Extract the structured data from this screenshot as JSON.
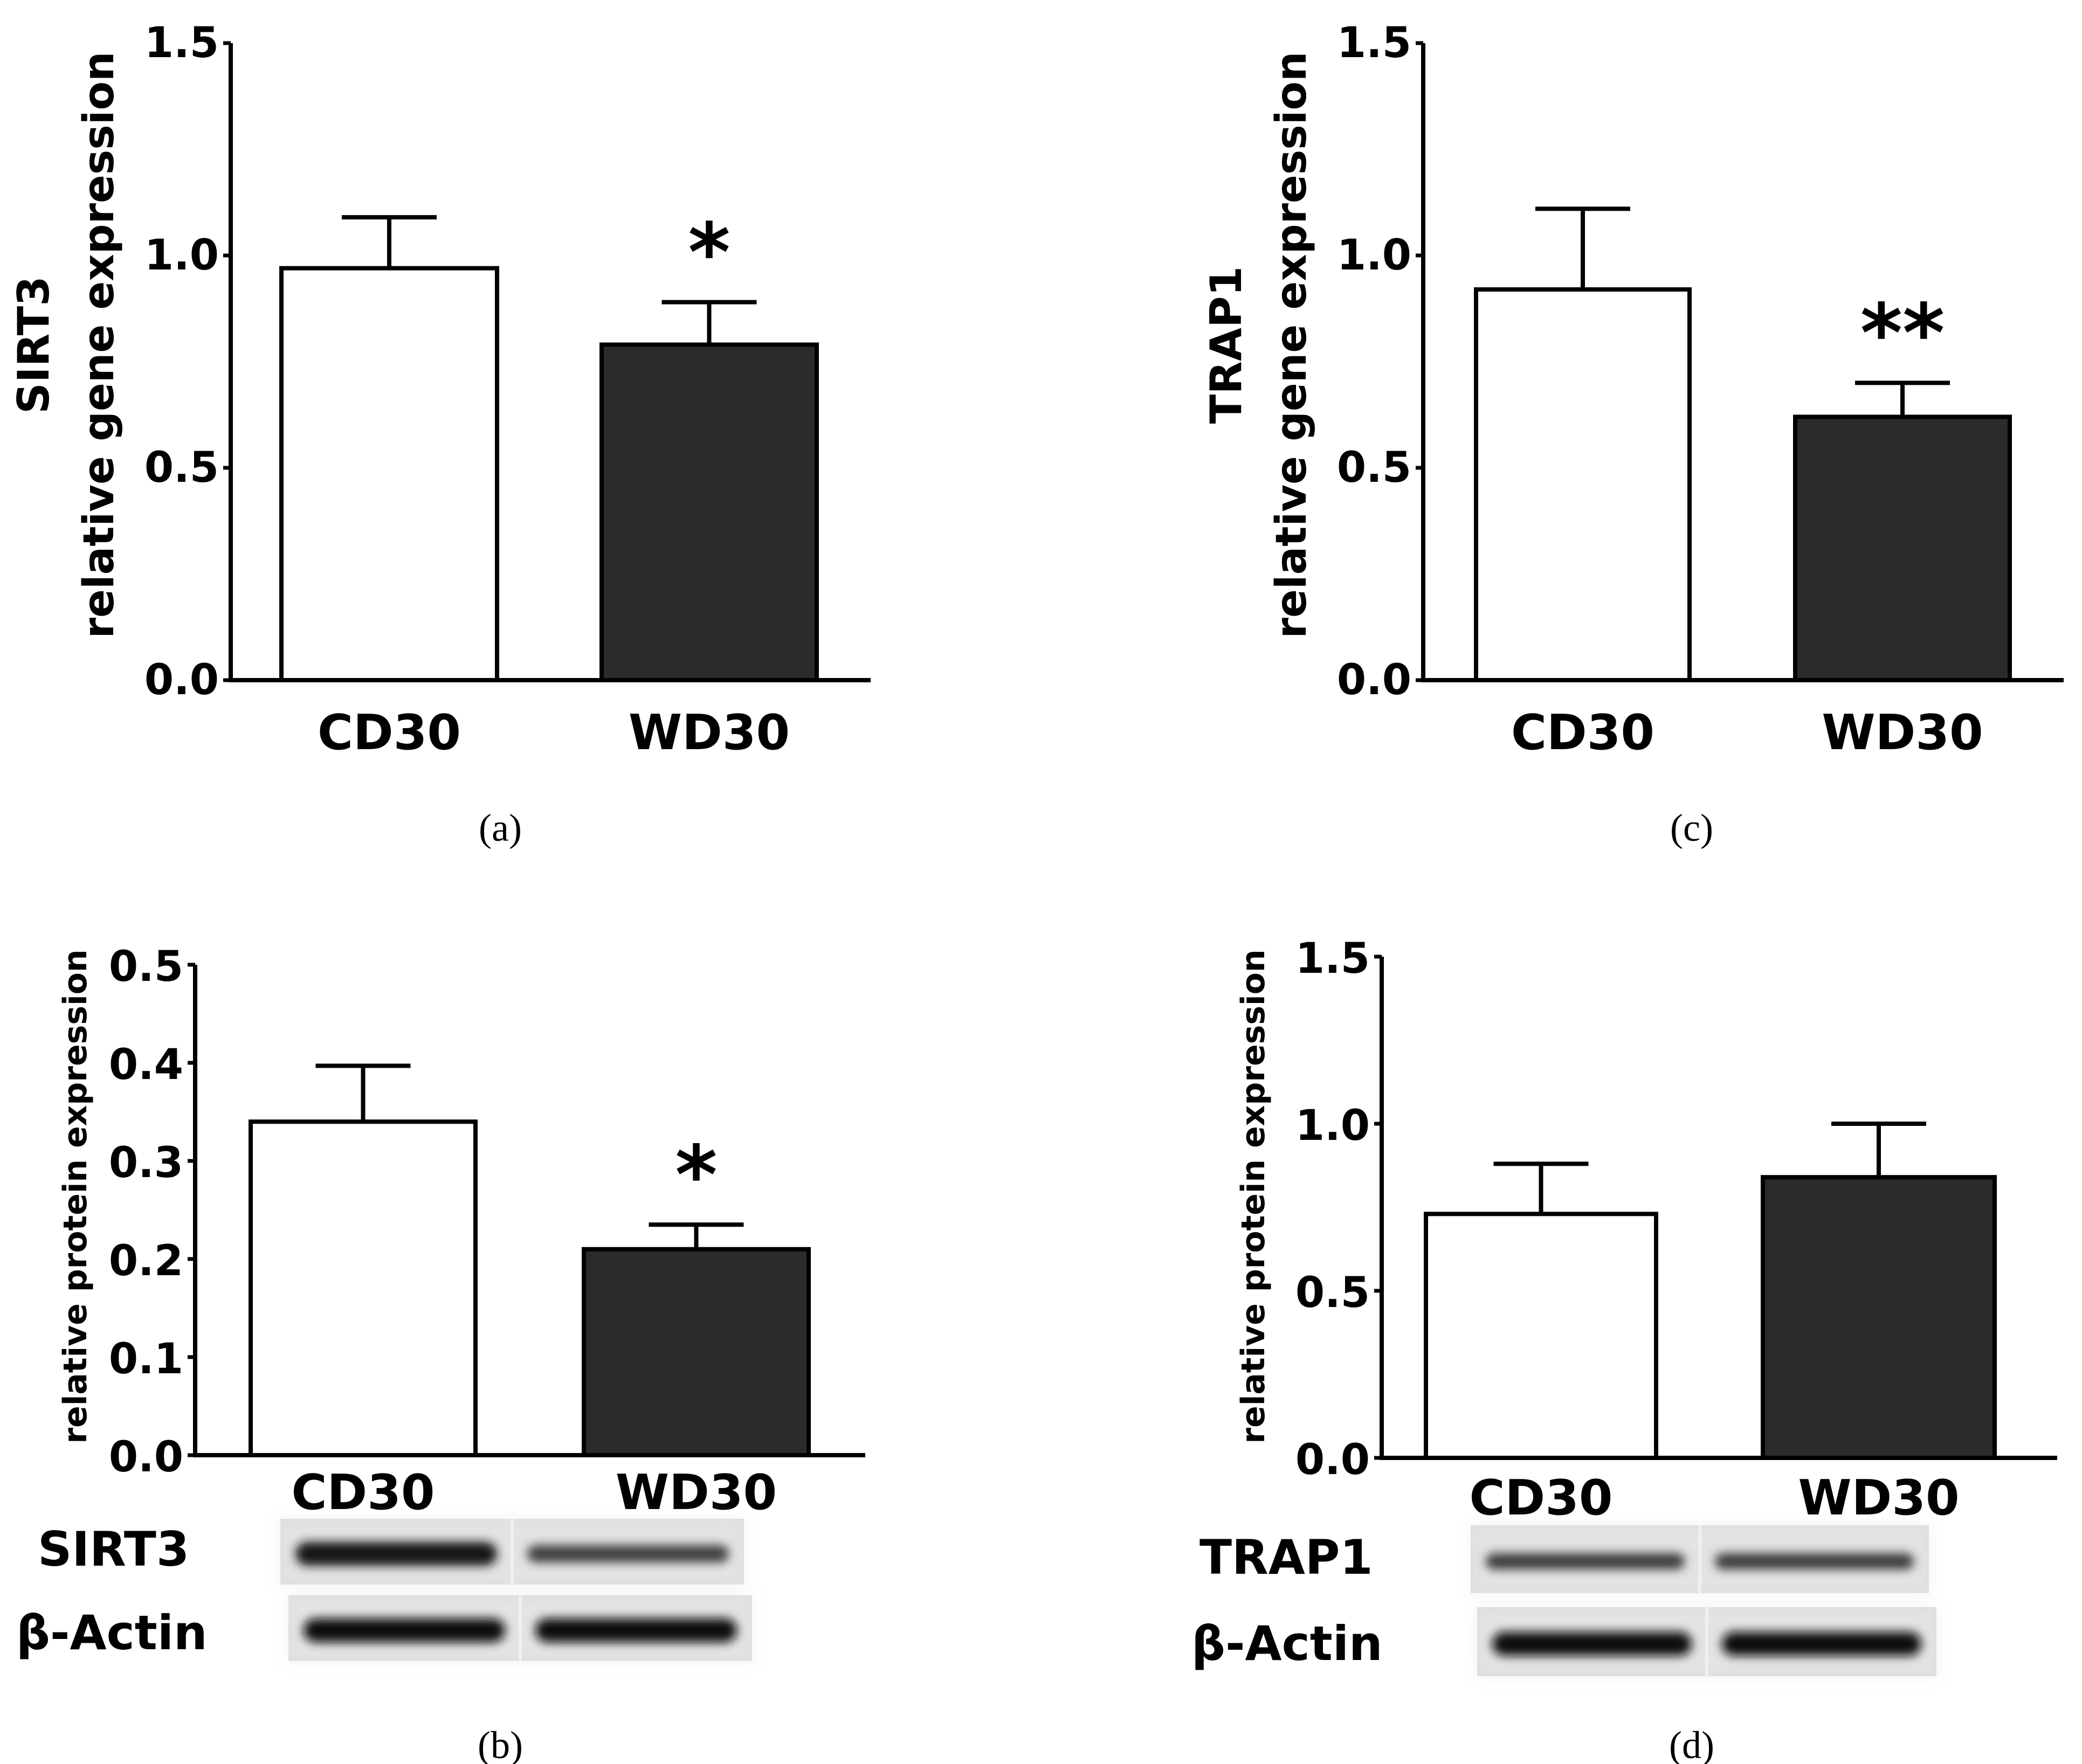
{
  "chart_data": [
    {
      "panel": "(a)",
      "type": "bar",
      "categories": [
        "CD30",
        "WD30"
      ],
      "values": [
        0.97,
        0.79
      ],
      "errors": [
        0.12,
        0.1
      ],
      "significance": [
        "",
        "*"
      ],
      "bar_colors": [
        "#ffffff",
        "#2b2b2b"
      ],
      "ylabel_gene": "SIRT3",
      "ylabel": "relative gene expression",
      "ylim": [
        0,
        1.5
      ],
      "yticks": [
        "0.0",
        "0.5",
        "1.0",
        "1.5"
      ]
    },
    {
      "panel": "(c)",
      "type": "bar",
      "categories": [
        "CD30",
        "WD30"
      ],
      "values": [
        0.92,
        0.62
      ],
      "errors": [
        0.19,
        0.08
      ],
      "significance": [
        "",
        "**"
      ],
      "bar_colors": [
        "#ffffff",
        "#2b2b2b"
      ],
      "ylabel_gene": "TRAP1",
      "ylabel": "relative gene expression",
      "ylim": [
        0,
        1.5
      ],
      "yticks": [
        "0.0",
        "0.5",
        "1.0",
        "1.5"
      ]
    },
    {
      "panel": "(b)",
      "type": "bar",
      "categories": [
        "CD30",
        "WD30"
      ],
      "values": [
        0.34,
        0.21
      ],
      "errors": [
        0.057,
        0.025
      ],
      "significance": [
        "",
        "*"
      ],
      "bar_colors": [
        "#ffffff",
        "#2b2b2b"
      ],
      "ylabel": "relative protein expression",
      "ylim": [
        0,
        0.5
      ],
      "yticks": [
        "0.0",
        "0.1",
        "0.2",
        "0.3",
        "0.4",
        "0.5"
      ],
      "blot_labels": [
        "SIRT3",
        "β-Actin"
      ]
    },
    {
      "panel": "(d)",
      "type": "bar",
      "categories": [
        "CD30",
        "WD30"
      ],
      "values": [
        0.73,
        0.84
      ],
      "errors": [
        0.15,
        0.16
      ],
      "significance": [
        "",
        ""
      ],
      "bar_colors": [
        "#ffffff",
        "#2b2b2b"
      ],
      "ylabel": "relative protein expression",
      "ylim": [
        0,
        1.5
      ],
      "yticks": [
        "0.0",
        "0.5",
        "1.0",
        "1.5"
      ],
      "blot_labels": [
        "TRAP1",
        "β-Actin"
      ]
    }
  ]
}
